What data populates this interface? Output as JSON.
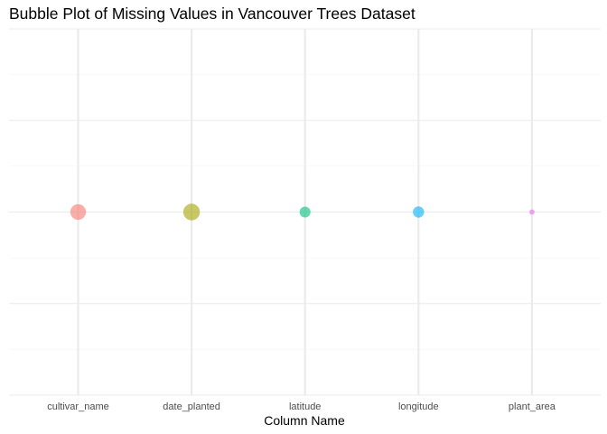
{
  "chart_data": {
    "type": "scatter",
    "title": "Bubble Plot of Missing Values in Vancouver Trees Dataset",
    "xlabel": "Column Name",
    "ylabel": "",
    "categories": [
      "cultivar_name",
      "date_planted",
      "latitude",
      "longitude",
      "plant_area"
    ],
    "points": [
      {
        "x": "cultivar_name",
        "y": 0,
        "size": 0.78,
        "color": "#F8766D"
      },
      {
        "x": "date_planted",
        "y": 0,
        "size": 0.92,
        "color": "#A3A500"
      },
      {
        "x": "latitude",
        "y": 0,
        "size": 0.28,
        "color": "#00BF7D"
      },
      {
        "x": "longitude",
        "y": 0,
        "size": 0.3,
        "color": "#00B0F6"
      },
      {
        "x": "plant_area",
        "y": 0,
        "size": 0.01,
        "color": "#E76BF3"
      }
    ],
    "ylim": [
      -0.05,
      0.05
    ],
    "point_alpha": 0.6,
    "grid": true,
    "legend": "none"
  }
}
